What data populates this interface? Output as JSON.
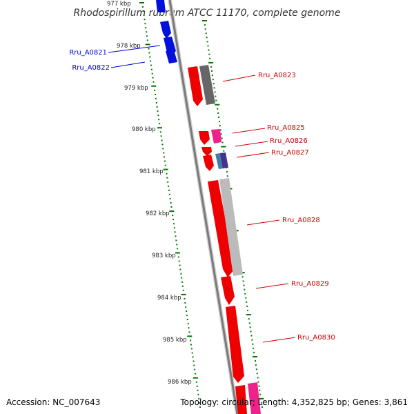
{
  "title": "Rhodospirillum rubrum ATCC 11170, complete genome",
  "accession": "Accession: NC_007643",
  "topology": "Topology: circular; Length: 4,352,825 bp; Genes: 3,861",
  "scale_labels": [
    "977 kbp",
    "978 kbp",
    "979 kbp",
    "980 kbp",
    "981 kbp",
    "982 kbp",
    "983 kbp",
    "984 kbp",
    "985 kbp",
    "986 kbp"
  ],
  "colors": {
    "forward_gene": "#ee0000",
    "reverse_gene": "#0000ee",
    "label_forward": "#cc0000",
    "label_reverse": "#0000cc",
    "backbone": "#8a8a8a",
    "ticks": "#007700",
    "magenta": "#ee2288",
    "dark_gray": "#555555",
    "light_gray": "#bbbbbb",
    "steel_blue": "#4477aa",
    "dark_violet": "#443388"
  },
  "gene_labels": [
    {
      "text": "Rru_A0821",
      "strand": "reverse"
    },
    {
      "text": "Rru_A0822",
      "strand": "reverse"
    },
    {
      "text": "Rru_A0823",
      "strand": "forward"
    },
    {
      "text": "Rru_A0825",
      "strand": "forward"
    },
    {
      "text": "Rru_A0826",
      "strand": "forward"
    },
    {
      "text": "Rru_A0827",
      "strand": "forward"
    },
    {
      "text": "Rru_A0828",
      "strand": "forward"
    },
    {
      "text": "Rru_A0829",
      "strand": "forward"
    },
    {
      "text": "Rru_A0830",
      "strand": "forward"
    }
  ]
}
